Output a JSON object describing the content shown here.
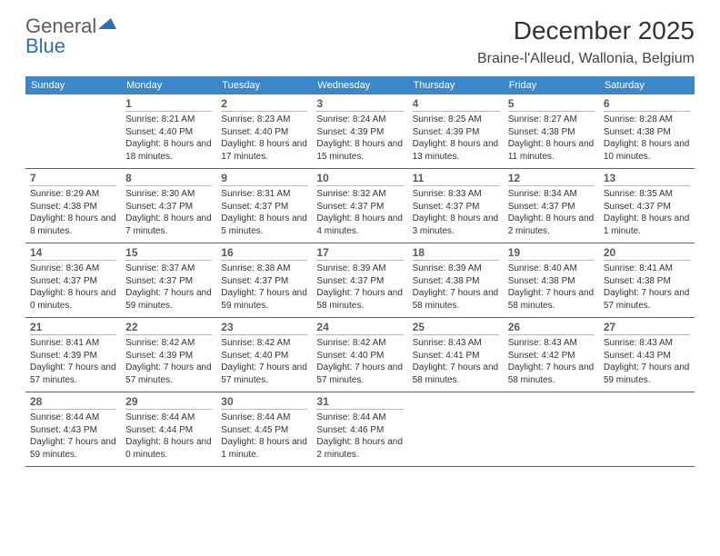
{
  "logo": {
    "general": "General",
    "blue": "Blue"
  },
  "title": "December 2025",
  "location": "Braine-l'Alleud, Wallonia, Belgium",
  "colors": {
    "header_bg": "#3b87c8",
    "rule": "#2f6aa5",
    "logo_gray": "#5c5c5c",
    "logo_blue": "#2e6fb4"
  },
  "weekdays": [
    "Sunday",
    "Monday",
    "Tuesday",
    "Wednesday",
    "Thursday",
    "Friday",
    "Saturday"
  ],
  "days": [
    {
      "n": "",
      "sr": "",
      "ss": "",
      "dl": ""
    },
    {
      "n": "1",
      "sr": "Sunrise: 8:21 AM",
      "ss": "Sunset: 4:40 PM",
      "dl": "Daylight: 8 hours and 18 minutes."
    },
    {
      "n": "2",
      "sr": "Sunrise: 8:23 AM",
      "ss": "Sunset: 4:40 PM",
      "dl": "Daylight: 8 hours and 17 minutes."
    },
    {
      "n": "3",
      "sr": "Sunrise: 8:24 AM",
      "ss": "Sunset: 4:39 PM",
      "dl": "Daylight: 8 hours and 15 minutes."
    },
    {
      "n": "4",
      "sr": "Sunrise: 8:25 AM",
      "ss": "Sunset: 4:39 PM",
      "dl": "Daylight: 8 hours and 13 minutes."
    },
    {
      "n": "5",
      "sr": "Sunrise: 8:27 AM",
      "ss": "Sunset: 4:38 PM",
      "dl": "Daylight: 8 hours and 11 minutes."
    },
    {
      "n": "6",
      "sr": "Sunrise: 8:28 AM",
      "ss": "Sunset: 4:38 PM",
      "dl": "Daylight: 8 hours and 10 minutes."
    },
    {
      "n": "7",
      "sr": "Sunrise: 8:29 AM",
      "ss": "Sunset: 4:38 PM",
      "dl": "Daylight: 8 hours and 8 minutes."
    },
    {
      "n": "8",
      "sr": "Sunrise: 8:30 AM",
      "ss": "Sunset: 4:37 PM",
      "dl": "Daylight: 8 hours and 7 minutes."
    },
    {
      "n": "9",
      "sr": "Sunrise: 8:31 AM",
      "ss": "Sunset: 4:37 PM",
      "dl": "Daylight: 8 hours and 5 minutes."
    },
    {
      "n": "10",
      "sr": "Sunrise: 8:32 AM",
      "ss": "Sunset: 4:37 PM",
      "dl": "Daylight: 8 hours and 4 minutes."
    },
    {
      "n": "11",
      "sr": "Sunrise: 8:33 AM",
      "ss": "Sunset: 4:37 PM",
      "dl": "Daylight: 8 hours and 3 minutes."
    },
    {
      "n": "12",
      "sr": "Sunrise: 8:34 AM",
      "ss": "Sunset: 4:37 PM",
      "dl": "Daylight: 8 hours and 2 minutes."
    },
    {
      "n": "13",
      "sr": "Sunrise: 8:35 AM",
      "ss": "Sunset: 4:37 PM",
      "dl": "Daylight: 8 hours and 1 minute."
    },
    {
      "n": "14",
      "sr": "Sunrise: 8:36 AM",
      "ss": "Sunset: 4:37 PM",
      "dl": "Daylight: 8 hours and 0 minutes."
    },
    {
      "n": "15",
      "sr": "Sunrise: 8:37 AM",
      "ss": "Sunset: 4:37 PM",
      "dl": "Daylight: 7 hours and 59 minutes."
    },
    {
      "n": "16",
      "sr": "Sunrise: 8:38 AM",
      "ss": "Sunset: 4:37 PM",
      "dl": "Daylight: 7 hours and 59 minutes."
    },
    {
      "n": "17",
      "sr": "Sunrise: 8:39 AM",
      "ss": "Sunset: 4:37 PM",
      "dl": "Daylight: 7 hours and 58 minutes."
    },
    {
      "n": "18",
      "sr": "Sunrise: 8:39 AM",
      "ss": "Sunset: 4:38 PM",
      "dl": "Daylight: 7 hours and 58 minutes."
    },
    {
      "n": "19",
      "sr": "Sunrise: 8:40 AM",
      "ss": "Sunset: 4:38 PM",
      "dl": "Daylight: 7 hours and 58 minutes."
    },
    {
      "n": "20",
      "sr": "Sunrise: 8:41 AM",
      "ss": "Sunset: 4:38 PM",
      "dl": "Daylight: 7 hours and 57 minutes."
    },
    {
      "n": "21",
      "sr": "Sunrise: 8:41 AM",
      "ss": "Sunset: 4:39 PM",
      "dl": "Daylight: 7 hours and 57 minutes."
    },
    {
      "n": "22",
      "sr": "Sunrise: 8:42 AM",
      "ss": "Sunset: 4:39 PM",
      "dl": "Daylight: 7 hours and 57 minutes."
    },
    {
      "n": "23",
      "sr": "Sunrise: 8:42 AM",
      "ss": "Sunset: 4:40 PM",
      "dl": "Daylight: 7 hours and 57 minutes."
    },
    {
      "n": "24",
      "sr": "Sunrise: 8:42 AM",
      "ss": "Sunset: 4:40 PM",
      "dl": "Daylight: 7 hours and 57 minutes."
    },
    {
      "n": "25",
      "sr": "Sunrise: 8:43 AM",
      "ss": "Sunset: 4:41 PM",
      "dl": "Daylight: 7 hours and 58 minutes."
    },
    {
      "n": "26",
      "sr": "Sunrise: 8:43 AM",
      "ss": "Sunset: 4:42 PM",
      "dl": "Daylight: 7 hours and 58 minutes."
    },
    {
      "n": "27",
      "sr": "Sunrise: 8:43 AM",
      "ss": "Sunset: 4:43 PM",
      "dl": "Daylight: 7 hours and 59 minutes."
    },
    {
      "n": "28",
      "sr": "Sunrise: 8:44 AM",
      "ss": "Sunset: 4:43 PM",
      "dl": "Daylight: 7 hours and 59 minutes."
    },
    {
      "n": "29",
      "sr": "Sunrise: 8:44 AM",
      "ss": "Sunset: 4:44 PM",
      "dl": "Daylight: 8 hours and 0 minutes."
    },
    {
      "n": "30",
      "sr": "Sunrise: 8:44 AM",
      "ss": "Sunset: 4:45 PM",
      "dl": "Daylight: 8 hours and 1 minute."
    },
    {
      "n": "31",
      "sr": "Sunrise: 8:44 AM",
      "ss": "Sunset: 4:46 PM",
      "dl": "Daylight: 8 hours and 2 minutes."
    },
    {
      "n": "",
      "sr": "",
      "ss": "",
      "dl": ""
    },
    {
      "n": "",
      "sr": "",
      "ss": "",
      "dl": ""
    },
    {
      "n": "",
      "sr": "",
      "ss": "",
      "dl": ""
    }
  ]
}
